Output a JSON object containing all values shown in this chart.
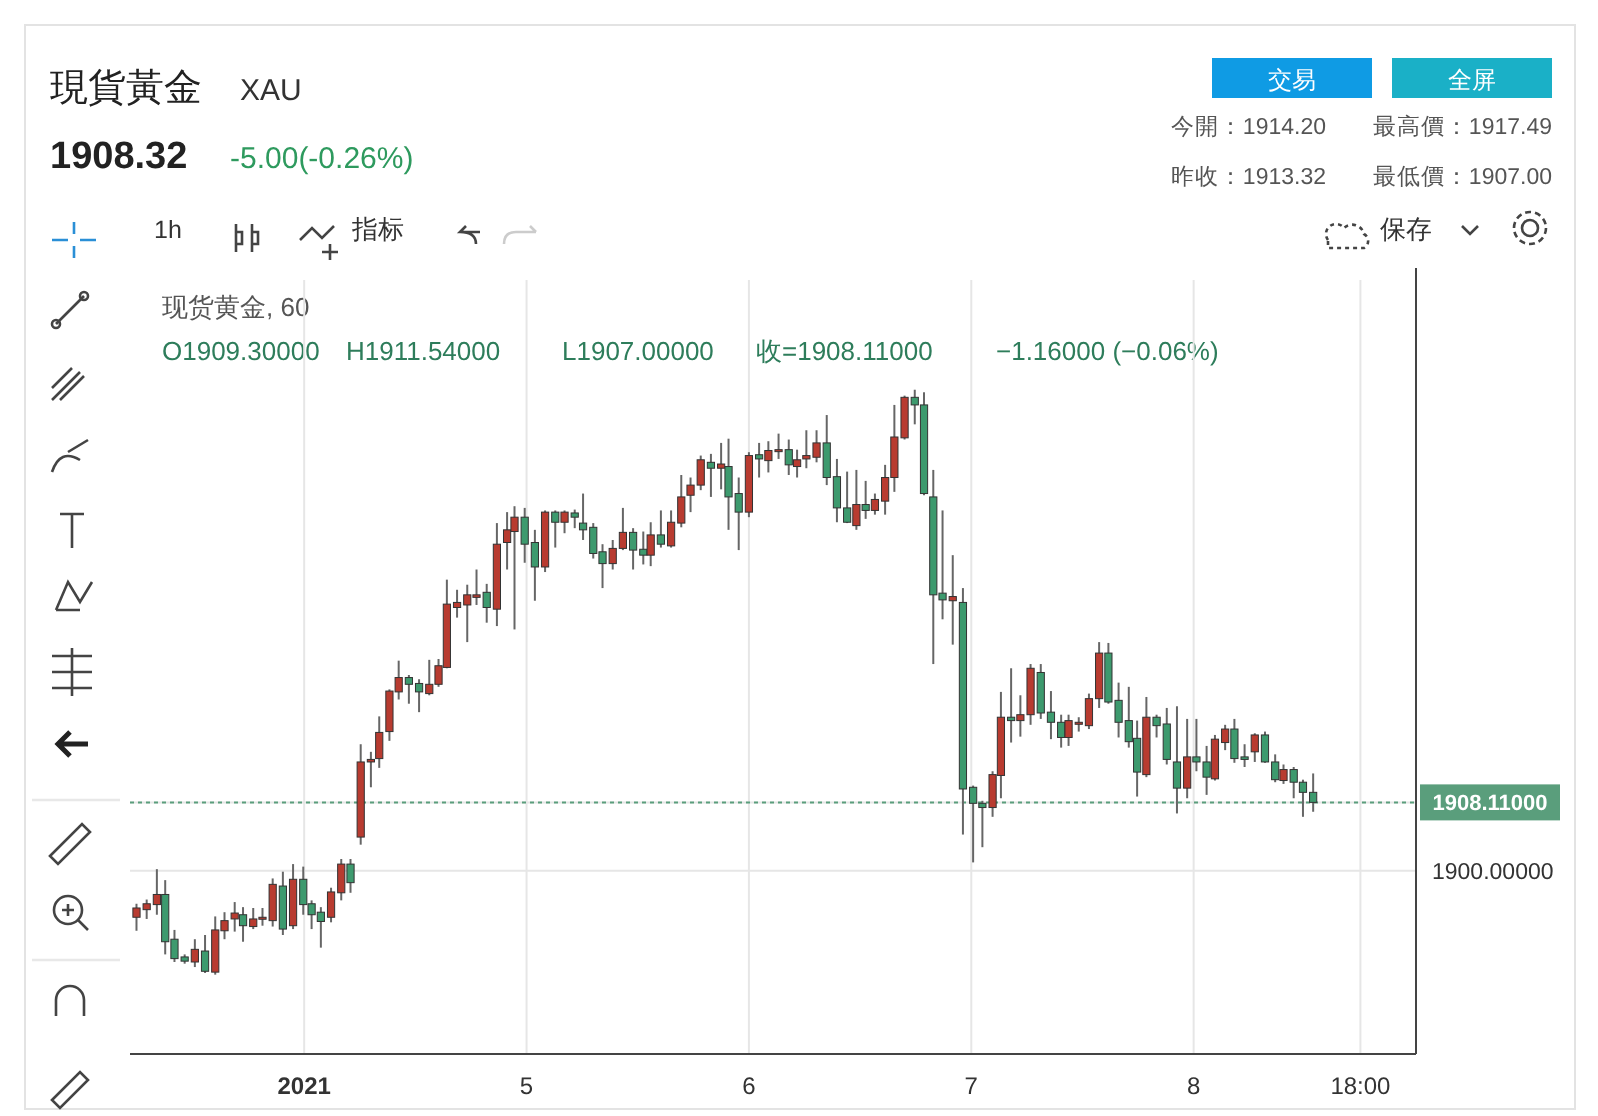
{
  "chart_data": {
    "type": "candlestick",
    "title": "現貨黃金",
    "subtitle": "XAU",
    "annotations": [
      "1908.32",
      "-5.00(-0.26%)",
      "交易",
      "全屏",
      "今開：1914.20",
      "最高價：1917.49",
      "昨收：1913.32",
      "最低價：1907.00",
      "1h",
      "指标",
      "保存",
      "现货黄金, 60",
      "O1909.30000",
      "H1911.54000",
      "L1907.00000",
      "收=1908.11000",
      "−1.16000 (−0.06%)"
    ],
    "xlim": [
      "2021-01-03T05:12",
      "2021-01-09T00:00"
    ],
    "ylim": [
      1878.3,
      1970
    ],
    "xticks": [
      {
        "value": "2021-01-04T00:00",
        "label": "2021"
      },
      {
        "value": "2021-01-05T00:00",
        "label": "5"
      },
      {
        "value": "2021-01-06T00:00",
        "label": "6"
      },
      {
        "value": "2021-01-07T00:00",
        "label": "7"
      },
      {
        "value": "2021-01-08T00:00",
        "label": "8"
      },
      {
        "value": "2021-01-08T18:00",
        "label": "18:00"
      }
    ],
    "yticks": [
      {
        "value": 1900,
        "label": "1900.00000"
      },
      {
        "value": 1908.11,
        "label": "1908.11000"
      }
    ],
    "grid": true,
    "ref_lines": [
      {
        "axis": "y",
        "value": 1908.11,
        "color": "#5a9e7c",
        "line_style": "dotted"
      }
    ],
    "x": [
      "2021-01-03T05:54",
      "2021-01-03T07:00",
      "2021-01-03T08:06",
      "2021-01-03T09:00",
      "2021-01-03T10:00",
      "2021-01-03T11:06",
      "2021-01-03T12:12",
      "2021-01-03T13:18",
      "2021-01-03T14:24",
      "2021-01-03T15:24",
      "2021-01-03T16:30",
      "2021-01-03T17:24",
      "2021-01-03T18:30",
      "2021-01-03T19:30",
      "2021-01-03T20:36",
      "2021-01-03T21:42",
      "2021-01-03T22:48",
      "2021-01-03T23:54",
      "2021-01-04T00:48",
      "2021-01-04T01:48",
      "2021-01-04T02:54",
      "2021-01-04T04:00",
      "2021-01-04T05:00",
      "2021-01-04T06:06",
      "2021-01-04T07:12",
      "2021-01-04T08:06",
      "2021-01-04T09:12",
      "2021-01-04T10:12",
      "2021-01-04T11:18",
      "2021-01-04T12:24",
      "2021-01-04T13:30",
      "2021-01-04T14:30",
      "2021-01-04T15:24",
      "2021-01-04T16:30",
      "2021-01-04T17:36",
      "2021-01-04T18:36",
      "2021-01-04T19:42",
      "2021-01-04T20:48",
      "2021-01-04T21:54",
      "2021-01-04T22:42",
      "2021-01-04T23:48",
      "2021-01-05T00:54",
      "2021-01-05T02:00",
      "2021-01-05T03:06",
      "2021-01-05T04:06",
      "2021-01-05T05:12",
      "2021-01-05T06:06",
      "2021-01-05T07:12",
      "2021-01-05T08:12",
      "2021-01-05T09:18",
      "2021-01-05T10:24",
      "2021-01-05T11:30",
      "2021-01-05T12:36",
      "2021-01-05T13:24",
      "2021-01-05T14:30",
      "2021-01-05T15:36",
      "2021-01-05T16:42",
      "2021-01-05T17:42",
      "2021-01-05T18:48",
      "2021-01-05T19:54",
      "2021-01-05T21:00",
      "2021-01-05T21:48",
      "2021-01-05T22:54",
      "2021-01-06T00:00",
      "2021-01-06T01:06",
      "2021-01-06T02:06",
      "2021-01-06T03:12",
      "2021-01-06T04:18",
      "2021-01-06T05:12",
      "2021-01-06T06:12",
      "2021-01-06T07:18",
      "2021-01-06T08:24",
      "2021-01-06T09:30",
      "2021-01-06T10:36",
      "2021-01-06T11:36",
      "2021-01-06T12:36",
      "2021-01-06T13:36",
      "2021-01-06T14:42",
      "2021-01-06T15:42",
      "2021-01-06T16:48",
      "2021-01-06T17:54",
      "2021-01-06T18:54",
      "2021-01-06T19:54",
      "2021-01-06T20:54",
      "2021-01-06T22:00",
      "2021-01-06T23:06",
      "2021-01-07T00:12",
      "2021-01-07T01:12",
      "2021-01-07T02:18",
      "2021-01-07T03:12",
      "2021-01-07T04:18",
      "2021-01-07T05:18",
      "2021-01-07T06:24",
      "2021-01-07T07:30",
      "2021-01-07T08:36",
      "2021-01-07T09:42",
      "2021-01-07T10:30",
      "2021-01-07T11:36",
      "2021-01-07T12:42",
      "2021-01-07T13:48",
      "2021-01-07T14:48",
      "2021-01-07T15:54",
      "2021-01-07T17:00",
      "2021-01-07T17:54",
      "2021-01-07T18:54",
      "2021-01-07T20:00",
      "2021-01-07T21:06",
      "2021-01-07T22:12",
      "2021-01-07T23:18",
      "2021-01-08T00:18",
      "2021-01-08T01:24",
      "2021-01-08T02:18",
      "2021-01-08T03:24",
      "2021-01-08T04:24",
      "2021-01-08T05:30",
      "2021-01-08T06:36",
      "2021-01-08T07:42",
      "2021-01-08T08:48",
      "2021-01-08T09:42",
      "2021-01-08T10:48",
      "2021-01-08T11:48",
      "2021-01-08T12:54"
    ],
    "ohlc": [
      [
        1894.5,
        1896.1,
        1892.9,
        1895.6
      ],
      [
        1895.4,
        1896.6,
        1894.3,
        1896.1
      ],
      [
        1896.0,
        1900.2,
        1894.8,
        1897.2
      ],
      [
        1897.2,
        1898.9,
        1890.1,
        1891.6
      ],
      [
        1891.9,
        1893.0,
        1889.2,
        1889.6
      ],
      [
        1889.8,
        1890.1,
        1889.0,
        1889.3
      ],
      [
        1889.2,
        1891.9,
        1888.6,
        1890.7
      ],
      [
        1890.5,
        1892.4,
        1887.9,
        1888.1
      ],
      [
        1888.0,
        1894.6,
        1887.7,
        1893.0
      ],
      [
        1892.9,
        1895.1,
        1891.9,
        1894.1
      ],
      [
        1894.3,
        1896.3,
        1892.8,
        1895.0
      ],
      [
        1894.8,
        1895.7,
        1891.6,
        1893.5
      ],
      [
        1893.4,
        1895.6,
        1893.1,
        1894.3
      ],
      [
        1894.3,
        1895.6,
        1893.5,
        1894.5
      ],
      [
        1894.1,
        1899.1,
        1893.4,
        1898.4
      ],
      [
        1898.2,
        1899.9,
        1892.4,
        1893.1
      ],
      [
        1893.5,
        1900.8,
        1893.1,
        1899.0
      ],
      [
        1899.0,
        1900.5,
        1894.8,
        1896.0
      ],
      [
        1896.1,
        1896.5,
        1893.1,
        1894.8
      ],
      [
        1895.1,
        1895.7,
        1890.9,
        1894.0
      ],
      [
        1894.5,
        1898.0,
        1893.9,
        1897.5
      ],
      [
        1897.4,
        1901.4,
        1896.5,
        1900.8
      ],
      [
        1900.8,
        1901.4,
        1897.4,
        1898.6
      ],
      [
        1904.0,
        1915.0,
        1903.1,
        1912.9
      ],
      [
        1912.9,
        1914.1,
        1909.9,
        1913.2
      ],
      [
        1913.3,
        1918.3,
        1912.2,
        1916.4
      ],
      [
        1916.5,
        1921.5,
        1915.4,
        1921.3
      ],
      [
        1921.2,
        1924.9,
        1920.3,
        1922.9
      ],
      [
        1922.9,
        1923.2,
        1919.8,
        1922.1
      ],
      [
        1922.2,
        1922.7,
        1918.8,
        1921.2
      ],
      [
        1921.0,
        1925.0,
        1920.8,
        1922.1
      ],
      [
        1922.1,
        1925.1,
        1921.8,
        1924.3
      ],
      [
        1924.1,
        1934.5,
        1924.0,
        1931.6
      ],
      [
        1931.2,
        1933.3,
        1930.0,
        1931.8
      ],
      [
        1931.5,
        1933.9,
        1927.1,
        1932.7
      ],
      [
        1932.4,
        1935.7,
        1931.5,
        1932.7
      ],
      [
        1933.0,
        1934.0,
        1929.4,
        1931.2
      ],
      [
        1931.0,
        1941.2,
        1929.0,
        1938.7
      ],
      [
        1938.9,
        1942.5,
        1935.7,
        1940.4
      ],
      [
        1940.2,
        1943.2,
        1928.6,
        1941.9
      ],
      [
        1941.9,
        1943.0,
        1936.5,
        1938.7
      ],
      [
        1938.9,
        1940.4,
        1932.0,
        1936.0
      ],
      [
        1936.0,
        1942.7,
        1935.4,
        1942.5
      ],
      [
        1942.5,
        1942.7,
        1938.3,
        1941.3
      ],
      [
        1941.3,
        1942.7,
        1940.0,
        1942.5
      ],
      [
        1942.4,
        1942.8,
        1940.6,
        1941.9
      ],
      [
        1941.2,
        1944.7,
        1939.2,
        1940.4
      ],
      [
        1940.7,
        1941.2,
        1937.0,
        1937.6
      ],
      [
        1937.8,
        1938.7,
        1933.5,
        1936.4
      ],
      [
        1936.4,
        1939.2,
        1935.7,
        1938.2
      ],
      [
        1938.2,
        1943.0,
        1938.0,
        1940.1
      ],
      [
        1940.1,
        1940.6,
        1935.7,
        1938.0
      ],
      [
        1938.1,
        1940.2,
        1936.3,
        1937.4
      ],
      [
        1937.4,
        1941.3,
        1936.1,
        1939.8
      ],
      [
        1939.8,
        1942.7,
        1938.3,
        1938.7
      ],
      [
        1938.5,
        1942.7,
        1938.3,
        1941.3
      ],
      [
        1941.2,
        1946.9,
        1940.7,
        1944.3
      ],
      [
        1944.5,
        1946.6,
        1942.5,
        1945.7
      ],
      [
        1945.7,
        1949.2,
        1945.1,
        1948.7
      ],
      [
        1948.4,
        1949.4,
        1944.3,
        1947.7
      ],
      [
        1947.7,
        1950.7,
        1945.2,
        1948.2
      ],
      [
        1947.9,
        1951.2,
        1940.4,
        1944.3
      ],
      [
        1944.7,
        1946.6,
        1938.0,
        1942.5
      ],
      [
        1942.5,
        1949.6,
        1941.9,
        1949.2
      ],
      [
        1949.3,
        1950.7,
        1946.6,
        1948.8
      ],
      [
        1948.6,
        1950.9,
        1947.2,
        1949.8
      ],
      [
        1949.7,
        1951.8,
        1948.8,
        1949.9
      ],
      [
        1949.9,
        1951.1,
        1946.9,
        1948.1
      ],
      [
        1947.9,
        1949.9,
        1946.6,
        1948.7
      ],
      [
        1948.8,
        1952.2,
        1947.7,
        1949.2
      ],
      [
        1949.0,
        1952.2,
        1948.4,
        1950.7
      ],
      [
        1950.7,
        1954.0,
        1945.7,
        1946.6
      ],
      [
        1946.7,
        1948.8,
        1941.3,
        1943.0
      ],
      [
        1943.0,
        1947.3,
        1941.2,
        1941.3
      ],
      [
        1940.9,
        1947.5,
        1940.4,
        1943.4
      ],
      [
        1943.4,
        1946.2,
        1941.7,
        1942.7
      ],
      [
        1942.7,
        1944.7,
        1942.2,
        1944.0
      ],
      [
        1943.8,
        1948.1,
        1942.2,
        1946.6
      ],
      [
        1946.6,
        1955.2,
        1944.9,
        1951.4
      ],
      [
        1951.3,
        1956.3,
        1951.1,
        1956.1
      ],
      [
        1956.1,
        1957.0,
        1952.9,
        1955.2
      ],
      [
        1955.2,
        1956.7,
        1944.5,
        1944.7
      ],
      [
        1944.3,
        1947.5,
        1924.5,
        1932.7
      ],
      [
        1932.9,
        1942.7,
        1929.8,
        1932.1
      ],
      [
        1932.0,
        1937.4,
        1926.8,
        1932.5
      ],
      [
        1931.8,
        1933.5,
        1904.3,
        1909.7
      ],
      [
        1909.9,
        1910.1,
        1901.0,
        1908.0
      ],
      [
        1908.0,
        1908.3,
        1902.8,
        1907.5
      ],
      [
        1907.5,
        1911.8,
        1906.4,
        1911.4
      ],
      [
        1911.3,
        1921.2,
        1908.6,
        1918.2
      ],
      [
        1918.2,
        1924.0,
        1915.2,
        1917.8
      ],
      [
        1917.8,
        1920.8,
        1915.9,
        1918.5
      ],
      [
        1918.5,
        1924.5,
        1917.3,
        1924.0
      ],
      [
        1923.5,
        1924.5,
        1918.0,
        1918.7
      ],
      [
        1918.8,
        1921.3,
        1915.6,
        1917.6
      ],
      [
        1917.6,
        1918.5,
        1914.6,
        1915.8
      ],
      [
        1915.8,
        1918.5,
        1914.8,
        1917.8
      ],
      [
        1917.5,
        1918.2,
        1916.5,
        1917.6
      ],
      [
        1917.2,
        1921.0,
        1916.8,
        1920.4
      ],
      [
        1920.4,
        1927.1,
        1919.3,
        1925.8
      ],
      [
        1925.8,
        1927.0,
        1919.8,
        1920.0
      ],
      [
        1920.2,
        1922.3,
        1915.8,
        1917.6
      ],
      [
        1917.8,
        1921.8,
        1914.6,
        1915.3
      ],
      [
        1915.7,
        1917.8,
        1908.8,
        1911.7
      ],
      [
        1911.4,
        1920.6,
        1911.1,
        1918.2
      ],
      [
        1918.2,
        1918.5,
        1915.8,
        1917.2
      ],
      [
        1917.4,
        1919.3,
        1912.6,
        1913.2
      ],
      [
        1912.9,
        1919.5,
        1906.8,
        1909.8
      ],
      [
        1909.8,
        1918.0,
        1908.6,
        1913.5
      ],
      [
        1913.5,
        1918.0,
        1911.8,
        1912.9
      ],
      [
        1912.9,
        1914.8,
        1909.0,
        1911.1
      ],
      [
        1910.9,
        1916.1,
        1910.7,
        1915.6
      ],
      [
        1915.2,
        1917.3,
        1914.3,
        1916.8
      ],
      [
        1916.8,
        1918.0,
        1912.8,
        1913.3
      ],
      [
        1913.5,
        1915.0,
        1912.3,
        1913.2
      ],
      [
        1914.1,
        1916.3,
        1912.9,
        1916.1
      ],
      [
        1916.1,
        1916.5,
        1912.8,
        1912.9
      ],
      [
        1912.9,
        1913.8,
        1910.5,
        1910.8
      ],
      [
        1910.7,
        1912.6,
        1910.3,
        1912.0
      ],
      [
        1912.0,
        1912.3,
        1908.6,
        1910.5
      ],
      [
        1910.5,
        1910.8,
        1906.4,
        1909.3
      ],
      [
        1909.3,
        1911.54,
        1907.0,
        1908.11
      ]
    ],
    "colors": [
      "#b83b30",
      "#b83b30",
      "#b83b30",
      "#3d9a6e",
      "#3d9a6e",
      "#3d9a6e",
      "#b83b30",
      "#3d9a6e",
      "#b83b30",
      "#b83b30",
      "#b83b30",
      "#3d9a6e",
      "#b83b30",
      "#b83b30",
      "#b83b30",
      "#3d9a6e",
      "#b83b30",
      "#3d9a6e",
      "#3d9a6e",
      "#3d9a6e",
      "#b83b30",
      "#b83b30",
      "#3d9a6e",
      "#b83b30",
      "#b83b30",
      "#b83b30",
      "#b83b30",
      "#b83b30",
      "#3d9a6e",
      "#3d9a6e",
      "#b83b30",
      "#b83b30",
      "#b83b30",
      "#b83b30",
      "#b83b30",
      "#b83b30",
      "#3d9a6e",
      "#b83b30",
      "#b83b30",
      "#b83b30",
      "#3d9a6e",
      "#3d9a6e",
      "#b83b30",
      "#3d9a6e",
      "#b83b30",
      "#3d9a6e",
      "#3d9a6e",
      "#3d9a6e",
      "#3d9a6e",
      "#b83b30",
      "#b83b30",
      "#3d9a6e",
      "#3d9a6e",
      "#b83b30",
      "#3d9a6e",
      "#b83b30",
      "#b83b30",
      "#b83b30",
      "#b83b30",
      "#3d9a6e",
      "#b83b30",
      "#3d9a6e",
      "#3d9a6e",
      "#b83b30",
      "#3d9a6e",
      "#b83b30",
      "#b83b30",
      "#3d9a6e",
      "#b83b30",
      "#b83b30",
      "#b83b30",
      "#3d9a6e",
      "#3d9a6e",
      "#3d9a6e",
      "#b83b30",
      "#3d9a6e",
      "#b83b30",
      "#b83b30",
      "#b83b30",
      "#b83b30",
      "#3d9a6e",
      "#3d9a6e",
      "#3d9a6e",
      "#3d9a6e",
      "#b83b30",
      "#3d9a6e",
      "#3d9a6e",
      "#3d9a6e",
      "#b83b30",
      "#b83b30",
      "#3d9a6e",
      "#b83b30",
      "#b83b30",
      "#3d9a6e",
      "#3d9a6e",
      "#3d9a6e",
      "#b83b30",
      "#b83b30",
      "#b83b30",
      "#b83b30",
      "#3d9a6e",
      "#3d9a6e",
      "#3d9a6e",
      "#3d9a6e",
      "#b83b30",
      "#3d9a6e",
      "#3d9a6e",
      "#3d9a6e",
      "#b83b30",
      "#3d9a6e",
      "#3d9a6e",
      "#b83b30",
      "#b83b30",
      "#3d9a6e",
      "#3d9a6e",
      "#b83b30",
      "#3d9a6e",
      "#3d9a6e",
      "#b83b30",
      "#3d9a6e",
      "#3d9a6e",
      "#3d9a6e"
    ]
  }
}
